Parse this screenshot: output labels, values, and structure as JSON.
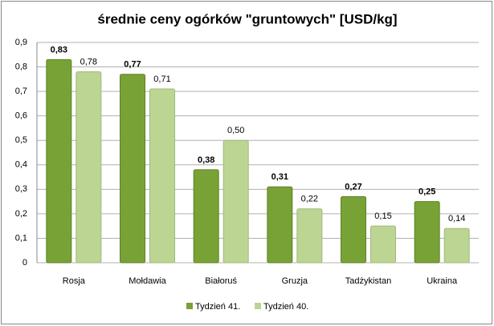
{
  "chart_data": {
    "type": "bar",
    "title": "średnie ceny ogórków \"gruntowych\" [USD/kg]",
    "categories": [
      "Rosja",
      "Mołdawia",
      "Białoruś",
      "Gruzja",
      "Tadżykistan",
      "Ukraina"
    ],
    "series": [
      {
        "name": "Tydzień 41.",
        "color": "#78a236",
        "values": [
          0.83,
          0.77,
          0.38,
          0.31,
          0.27,
          0.25
        ],
        "value_labels": [
          "0,83",
          "0,77",
          "0,38",
          "0,31",
          "0,27",
          "0,25"
        ]
      },
      {
        "name": "Tydzień 40.",
        "color": "#bcd592",
        "values": [
          0.78,
          0.71,
          0.5,
          0.22,
          0.15,
          0.14
        ],
        "value_labels": [
          "0,78",
          "0,71",
          "0,50",
          "0,22",
          "0,15",
          "0,14"
        ]
      }
    ],
    "ylim": [
      0,
      0.9
    ],
    "yticks": [
      0,
      {
        "value": 0.1,
        "label": "0,1"
      },
      {
        "value": 0.2,
        "label": "0,2"
      },
      {
        "value": 0.3,
        "label": "0,3"
      },
      {
        "value": 0.4,
        "label": "0,4"
      },
      {
        "value": 0.5,
        "label": "0,5"
      },
      {
        "value": 0.6,
        "label": "0,6"
      },
      {
        "value": 0.7,
        "label": "0,7"
      },
      {
        "value": 0.8,
        "label": "0,8"
      },
      {
        "value": 0.9,
        "label": "0,9"
      }
    ],
    "grid": true,
    "legend": "bottom"
  }
}
